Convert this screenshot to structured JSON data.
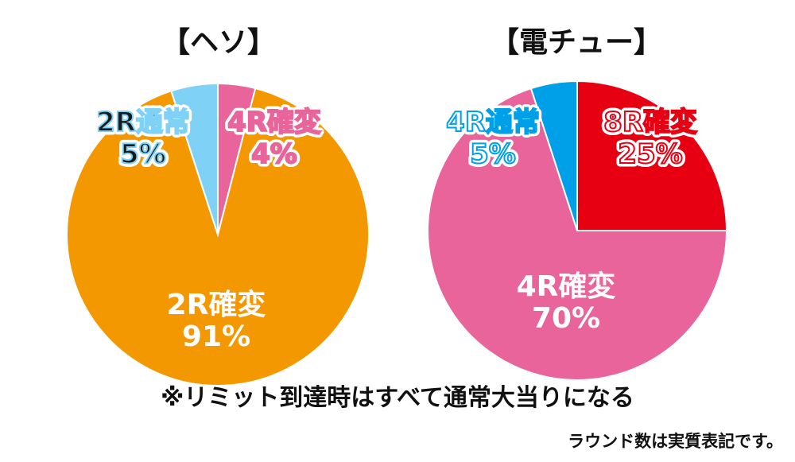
{
  "chart_data": [
    {
      "type": "pie",
      "title": "【ヘソ】",
      "slices": [
        {
          "label": "4R確変",
          "value": 4,
          "display": "4%",
          "color": "#e8649a",
          "text_color": "#e8649a"
        },
        {
          "label": "2R確変",
          "value": 91,
          "display": "91%",
          "color": "#f39800",
          "text_color": "#ffffff"
        },
        {
          "label": "2R通常",
          "value": 5,
          "display": "5%",
          "color": "#7fd1f5",
          "text_color": "#1a1a1a"
        }
      ]
    },
    {
      "type": "pie",
      "title": "【電チュー】",
      "slices": [
        {
          "label": "8R確変",
          "value": 25,
          "display": "25%",
          "color": "#e60012",
          "text_color": "#ffffff"
        },
        {
          "label": "4R確変",
          "value": 70,
          "display": "70%",
          "color": "#e8649a",
          "text_color": "#ffffff"
        },
        {
          "label": "4R通常",
          "value": 5,
          "display": "5%",
          "color": "#00a0e9",
          "text_color": "#ffffff"
        }
      ]
    }
  ],
  "notes": {
    "main": "※リミット到達時はすべて通常大当りになる",
    "sub": "ラウンド数は実質表記です。"
  }
}
